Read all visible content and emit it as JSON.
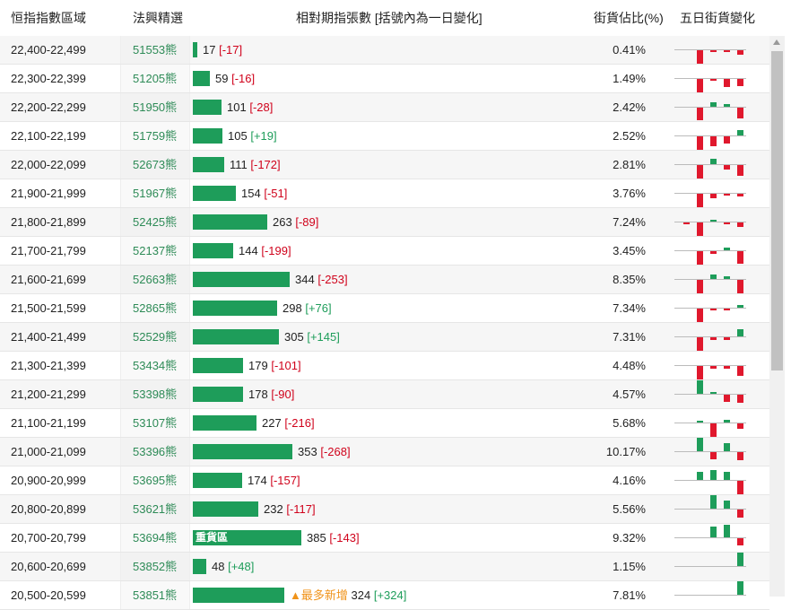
{
  "headers": {
    "range": "恒指指數區域",
    "bear": "法興精選",
    "ratio": "相對期指張數 [括號內為一日變化]",
    "pct": "街貨佔比(%)",
    "five": "五日街貨變化"
  },
  "labels": {
    "heavy": "重貨區",
    "most_new": "▲最多新增"
  },
  "colors": {
    "bar": "#1e9d5a",
    "negative": "#d0021b",
    "positive": "#1e9d5a",
    "tag": "#f0931a"
  },
  "rows": [
    {
      "range": "22,400-22,499",
      "code": "51553熊",
      "count": "17",
      "change": "[-17]",
      "pct": "0.41%",
      "spark": [
        0,
        -1,
        -0.1,
        -0.1,
        -0.3
      ]
    },
    {
      "range": "22,300-22,399",
      "code": "51205熊",
      "count": "59",
      "change": "[-16]",
      "pct": "1.49%",
      "spark": [
        0,
        -1,
        -0.1,
        -0.6,
        -0.5
      ]
    },
    {
      "range": "22,200-22,299",
      "code": "51950熊",
      "count": "101",
      "change": "[-28]",
      "pct": "2.42%",
      "spark": [
        0,
        -0.9,
        0.3,
        0.2,
        -0.8
      ]
    },
    {
      "range": "22,100-22,199",
      "code": "51759熊",
      "count": "105",
      "change": "[+19]",
      "pct": "2.52%",
      "spark": [
        0,
        -1,
        -0.7,
        -0.5,
        0.4
      ]
    },
    {
      "range": "22,000-22,099",
      "code": "52673熊",
      "count": "111",
      "change": "[-172]",
      "pct": "2.81%",
      "spark": [
        0,
        -1,
        0.4,
        -0.3,
        -0.8
      ]
    },
    {
      "range": "21,900-21,999",
      "code": "51967熊",
      "count": "154",
      "change": "[-51]",
      "pct": "3.76%",
      "spark": [
        0,
        -1,
        -0.3,
        -0.1,
        -0.2
      ]
    },
    {
      "range": "21,800-21,899",
      "code": "52425熊",
      "count": "263",
      "change": "[-89]",
      "pct": "7.24%",
      "spark": [
        -0.1,
        -1,
        0.1,
        -0.1,
        -0.3
      ]
    },
    {
      "range": "21,700-21,799",
      "code": "52137熊",
      "count": "144",
      "change": "[-199]",
      "pct": "3.45%",
      "spark": [
        0,
        -1,
        -0.2,
        0.2,
        -0.9
      ]
    },
    {
      "range": "21,600-21,699",
      "code": "52663熊",
      "count": "344",
      "change": "[-253]",
      "pct": "8.35%",
      "spark": [
        0,
        -1,
        0.3,
        0.2,
        -1
      ]
    },
    {
      "range": "21,500-21,599",
      "code": "52865熊",
      "count": "298",
      "change": "[+76]",
      "pct": "7.34%",
      "spark": [
        0,
        -1,
        -0.1,
        -0.1,
        0.2
      ]
    },
    {
      "range": "21,400-21,499",
      "code": "52529熊",
      "count": "305",
      "change": "[+145]",
      "pct": "7.31%",
      "spark": [
        0,
        -1,
        -0.2,
        -0.2,
        0.5
      ]
    },
    {
      "range": "21,300-21,399",
      "code": "53434熊",
      "count": "179",
      "change": "[-101]",
      "pct": "4.48%",
      "spark": [
        0,
        -1,
        -0.2,
        -0.2,
        -0.7
      ]
    },
    {
      "range": "21,200-21,299",
      "code": "53398熊",
      "count": "178",
      "change": "[-90]",
      "pct": "4.57%",
      "spark": [
        0,
        1,
        0.1,
        -0.5,
        -0.6
      ]
    },
    {
      "range": "21,100-21,199",
      "code": "53107熊",
      "count": "227",
      "change": "[-216]",
      "pct": "5.68%",
      "spark": [
        0,
        0.1,
        -1,
        0.2,
        -0.4
      ]
    },
    {
      "range": "21,000-21,099",
      "code": "53396熊",
      "count": "353",
      "change": "[-268]",
      "pct": "10.17%",
      "spark": [
        0,
        1,
        -0.5,
        0.6,
        -0.6
      ]
    },
    {
      "range": "20,900-20,999",
      "code": "53695熊",
      "count": "174",
      "change": "[-157]",
      "pct": "4.16%",
      "spark": [
        0,
        0.6,
        0.7,
        0.6,
        -1
      ]
    },
    {
      "range": "20,800-20,899",
      "code": "53621熊",
      "count": "232",
      "change": "[-117]",
      "pct": "5.56%",
      "spark": [
        0,
        0,
        1,
        0.6,
        -0.6
      ]
    },
    {
      "range": "20,700-20,799",
      "code": "53694熊",
      "count": "385",
      "change": "[-143]",
      "pct": "9.32%",
      "spark": [
        0,
        0,
        0.8,
        0.9,
        -0.5
      ]
    },
    {
      "range": "20,600-20,699",
      "code": "53852熊",
      "count": "48",
      "change": "[+48]",
      "pct": "1.15%",
      "spark": [
        0,
        0,
        0,
        0,
        1
      ]
    },
    {
      "range": "20,500-20,599",
      "code": "53851熊",
      "count": "324",
      "change": "[+324]",
      "pct": "7.81%",
      "spark": [
        0,
        0,
        0,
        0,
        1
      ]
    }
  ]
}
